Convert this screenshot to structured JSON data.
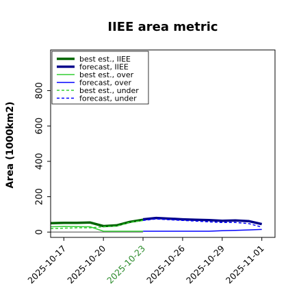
{
  "chart_data": {
    "type": "line",
    "title": "IIEE area metric",
    "xlabel": "",
    "ylabel": "Area (1000km2)",
    "ylim": [
      -30,
      1030
    ],
    "yticks": [
      0,
      200,
      400,
      600,
      800
    ],
    "xlim": [
      "2025-10-16",
      "2025-11-02"
    ],
    "xticks": [
      {
        "date": "2025-10-17",
        "label": "2025-10-17",
        "color": "#000000"
      },
      {
        "date": "2025-10-20",
        "label": "2025-10-20",
        "color": "#000000"
      },
      {
        "date": "2025-10-23",
        "label": "2025-10-23",
        "color": "#2a8a2a"
      },
      {
        "date": "2025-10-26",
        "label": "2025-10-26",
        "color": "#000000"
      },
      {
        "date": "2025-10-29",
        "label": "2025-10-29",
        "color": "#000000"
      },
      {
        "date": "2025-11-01",
        "label": "2025-11-01",
        "color": "#000000"
      }
    ],
    "grid": false,
    "legend": {
      "placement": "top-left"
    },
    "series": [
      {
        "name": "best est., IIEE",
        "color": "#006400",
        "dash": "solid",
        "width": 3.5,
        "x": [
          "2025-10-16",
          "2025-10-17",
          "2025-10-18",
          "2025-10-19",
          "2025-10-20",
          "2025-10-21",
          "2025-10-22",
          "2025-10-23"
        ],
        "y": [
          50,
          52,
          52,
          54,
          34,
          38,
          58,
          70
        ]
      },
      {
        "name": "forecast, IIEE",
        "color": "#00008b",
        "dash": "solid",
        "width": 3.5,
        "x": [
          "2025-10-23",
          "2025-10-24",
          "2025-10-25",
          "2025-10-26",
          "2025-10-27",
          "2025-10-28",
          "2025-10-29",
          "2025-10-30",
          "2025-10-31",
          "2025-11-01"
        ],
        "y": [
          72,
          80,
          76,
          72,
          70,
          68,
          64,
          66,
          62,
          45
        ]
      },
      {
        "name": "best est., over",
        "color": "#32cd32",
        "dash": "solid",
        "width": 1.5,
        "x": [
          "2025-10-16",
          "2025-10-17",
          "2025-10-18",
          "2025-10-19",
          "2025-10-20",
          "2025-10-21",
          "2025-10-22",
          "2025-10-23"
        ],
        "y": [
          30,
          32,
          31,
          30,
          5,
          5,
          5,
          5
        ]
      },
      {
        "name": "forecast, over",
        "color": "#0000ff",
        "dash": "solid",
        "width": 1.5,
        "x": [
          "2025-10-23",
          "2025-10-24",
          "2025-10-25",
          "2025-10-26",
          "2025-10-27",
          "2025-10-28",
          "2025-10-29",
          "2025-10-30",
          "2025-10-31",
          "2025-11-01"
        ],
        "y": [
          5,
          5,
          5,
          5,
          5,
          5,
          8,
          10,
          12,
          15
        ]
      },
      {
        "name": "best est., under",
        "color": "#32cd32",
        "dash": "dashed",
        "width": 1.5,
        "x": [
          "2025-10-16",
          "2025-10-17",
          "2025-10-18",
          "2025-10-19",
          "2025-10-20",
          "2025-10-21",
          "2025-10-22",
          "2025-10-23"
        ],
        "y": [
          20,
          22,
          24,
          24,
          30,
          33,
          55,
          65
        ]
      },
      {
        "name": "forecast, under",
        "color": "#0000ff",
        "dash": "dashed",
        "width": 1.5,
        "x": [
          "2025-10-23",
          "2025-10-24",
          "2025-10-25",
          "2025-10-26",
          "2025-10-27",
          "2025-10-28",
          "2025-10-29",
          "2025-10-30",
          "2025-10-31",
          "2025-11-01"
        ],
        "y": [
          66,
          74,
          70,
          66,
          62,
          58,
          54,
          54,
          48,
          28
        ]
      }
    ],
    "extra_lines": [
      {
        "name": "",
        "color": "#808080",
        "dash": "solid",
        "width": 1.5,
        "x": [
          "2025-10-16",
          "2025-10-23"
        ],
        "y": [
          0,
          0
        ]
      }
    ]
  }
}
